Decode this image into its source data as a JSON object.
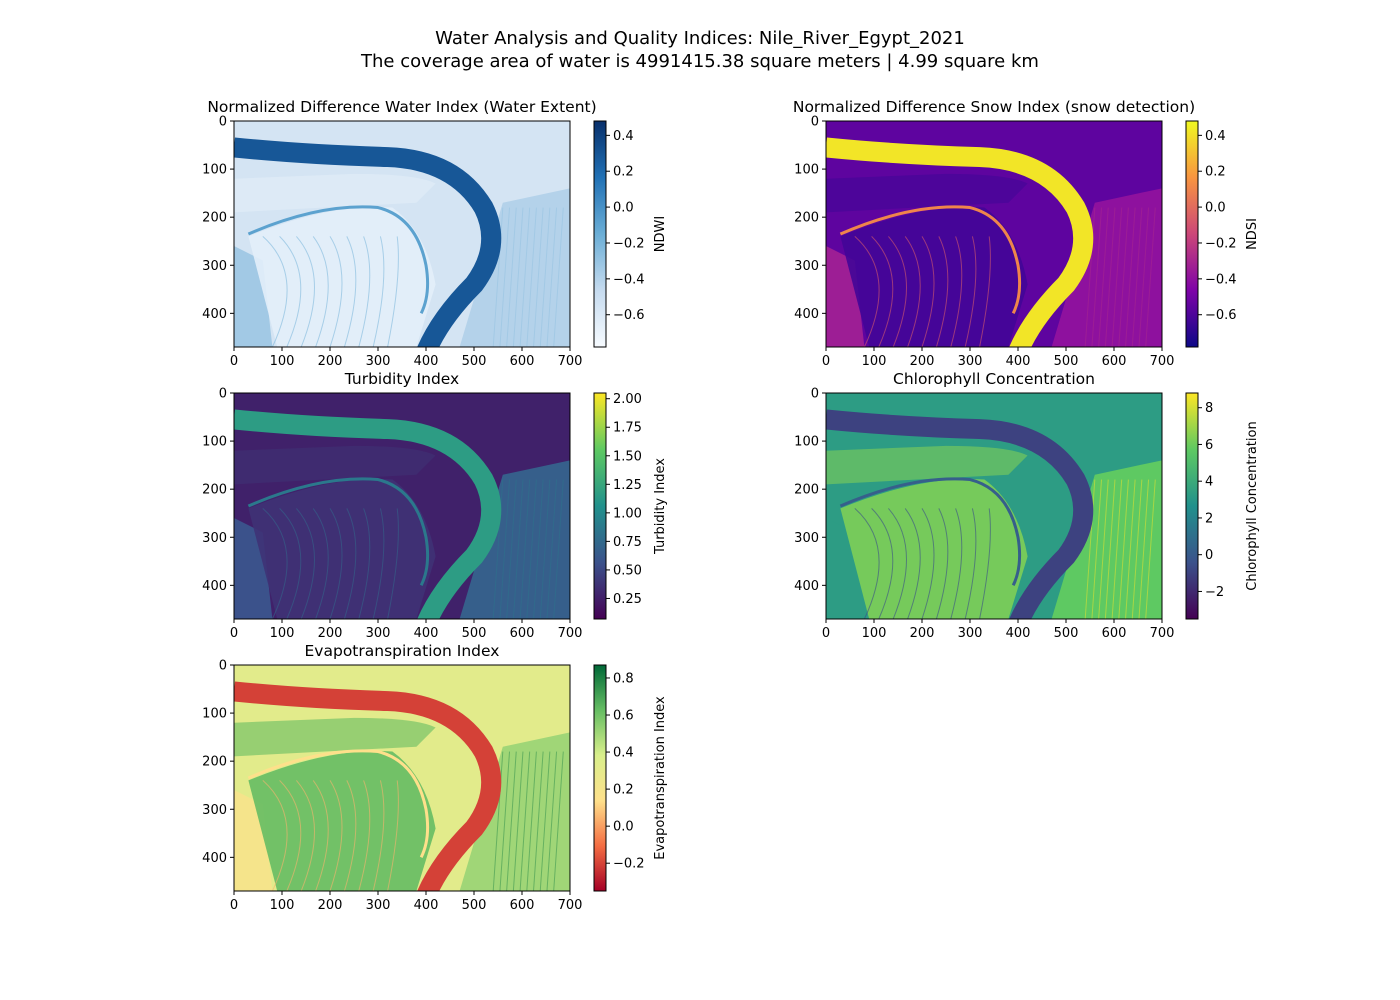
{
  "figure": {
    "title_line1": "Water Analysis and Quality Indices: Nile_River_Egypt_2021",
    "title_line2": "The coverage area of water is 4991415.38 square meters | 4.99 square km"
  },
  "chart_data": [
    {
      "type": "heatmap",
      "title": "Normalized Difference Water Index (Water Extent)",
      "colorbar_label": "NDWI",
      "colormap": "Blues",
      "colormap_stops": [
        "#f7fbff",
        "#c6dbef",
        "#6baed6",
        "#2171b5",
        "#08306b"
      ],
      "xlim": [
        0,
        700
      ],
      "ylim": [
        470,
        0
      ],
      "x_ticks": [
        0,
        100,
        200,
        300,
        400,
        500,
        600,
        700
      ],
      "y_ticks": [
        0,
        100,
        200,
        300,
        400
      ],
      "vmin": -0.78,
      "vmax": 0.48,
      "colorbar_ticks": [
        -0.6,
        -0.4,
        -0.2,
        0.0,
        0.2,
        0.4
      ],
      "colorbar_tick_labels": [
        "−0.6",
        "−0.4",
        "−0.2",
        "0.0",
        "0.2",
        "0.4"
      ]
    },
    {
      "type": "heatmap",
      "title": "Normalized Difference Snow Index (snow detection)",
      "colorbar_label": "NDSI",
      "colormap": "plasma",
      "colormap_stops": [
        "#0d0887",
        "#7e03a8",
        "#cc4778",
        "#f89540",
        "#f0f921"
      ],
      "xlim": [
        0,
        700
      ],
      "ylim": [
        470,
        0
      ],
      "x_ticks": [
        0,
        100,
        200,
        300,
        400,
        500,
        600,
        700
      ],
      "y_ticks": [
        0,
        100,
        200,
        300,
        400
      ],
      "vmin": -0.78,
      "vmax": 0.48,
      "colorbar_ticks": [
        -0.6,
        -0.4,
        -0.2,
        0.0,
        0.2,
        0.4
      ],
      "colorbar_tick_labels": [
        "−0.6",
        "−0.4",
        "−0.2",
        "0.0",
        "0.2",
        "0.4"
      ]
    },
    {
      "type": "heatmap",
      "title": "Turbidity Index",
      "colorbar_label": "Turbidity Index",
      "colormap": "viridis",
      "colormap_stops": [
        "#440154",
        "#3b528b",
        "#21918c",
        "#5ec962",
        "#fde725"
      ],
      "xlim": [
        0,
        700
      ],
      "ylim": [
        470,
        0
      ],
      "x_ticks": [
        0,
        100,
        200,
        300,
        400,
        500,
        600,
        700
      ],
      "y_ticks": [
        0,
        100,
        200,
        300,
        400
      ],
      "vmin": 0.07,
      "vmax": 2.05,
      "colorbar_ticks": [
        0.25,
        0.5,
        0.75,
        1.0,
        1.25,
        1.5,
        1.75,
        2.0
      ],
      "colorbar_tick_labels": [
        "0.25",
        "0.50",
        "0.75",
        "1.00",
        "1.25",
        "1.50",
        "1.75",
        "2.00"
      ]
    },
    {
      "type": "heatmap",
      "title": "Chlorophyll Concentration",
      "colorbar_label": "Chlorophyll Concentration",
      "colormap": "viridis",
      "colormap_stops": [
        "#440154",
        "#3b528b",
        "#21918c",
        "#5ec962",
        "#fde725"
      ],
      "xlim": [
        0,
        700
      ],
      "ylim": [
        470,
        0
      ],
      "x_ticks": [
        0,
        100,
        200,
        300,
        400,
        500,
        600,
        700
      ],
      "y_ticks": [
        0,
        100,
        200,
        300,
        400
      ],
      "vmin": -3.5,
      "vmax": 8.8,
      "colorbar_ticks": [
        -2,
        0,
        2,
        4,
        6,
        8
      ],
      "colorbar_tick_labels": [
        "−2",
        "0",
        "2",
        "4",
        "6",
        "8"
      ]
    },
    {
      "type": "heatmap",
      "title": "Evapotranspiration Index",
      "colorbar_label": "Evapotranspiration Index",
      "colormap": "RdYlGn",
      "colormap_stops": [
        "#a50026",
        "#f46d43",
        "#fee08b",
        "#d9ef8b",
        "#66bd63",
        "#006837"
      ],
      "xlim": [
        0,
        700
      ],
      "ylim": [
        470,
        0
      ],
      "x_ticks": [
        0,
        100,
        200,
        300,
        400,
        500,
        600,
        700
      ],
      "y_ticks": [
        0,
        100,
        200,
        300,
        400
      ],
      "vmin": -0.35,
      "vmax": 0.87,
      "colorbar_ticks": [
        -0.2,
        0.0,
        0.2,
        0.4,
        0.6,
        0.8
      ],
      "colorbar_tick_labels": [
        "−0.2",
        "0.0",
        "0.2",
        "0.4",
        "0.6",
        "0.8"
      ]
    }
  ]
}
